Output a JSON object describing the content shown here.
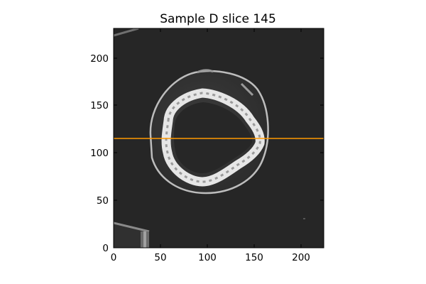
{
  "figure": {
    "title": "Sample D slice 145"
  },
  "image": {
    "description_kind": "grayscale CT slice",
    "x_range": [
      0,
      224
    ],
    "y_range": [
      0,
      232
    ],
    "x_ticks": [
      "0",
      "50",
      "100",
      "150",
      "200"
    ],
    "y_ticks": [
      "0",
      "50",
      "100",
      "150",
      "200"
    ],
    "crosshair": {
      "orientation": "horizontal",
      "y_value": 116,
      "color": "#ff9900"
    },
    "colors": {
      "background": "#262626",
      "frame": "#000000",
      "bone": "#e6e6e6",
      "soft_tissue": "#3a3a3a"
    }
  }
}
